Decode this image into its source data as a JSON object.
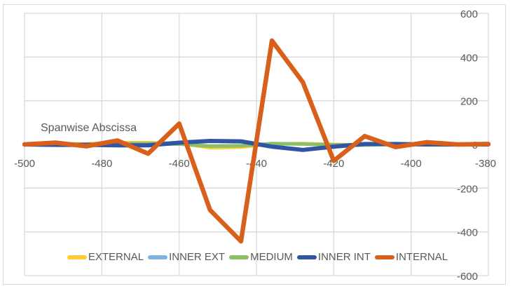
{
  "chart_data": {
    "type": "line",
    "title": "",
    "annotation": "Spanwise Abscissa",
    "xlabel": "",
    "ylabel": "",
    "xlim": [
      -500,
      -380
    ],
    "ylim": [
      -600,
      600
    ],
    "x_ticks": [
      -500,
      -480,
      -460,
      -440,
      -420,
      -400,
      -380
    ],
    "y_ticks": [
      600,
      400,
      200,
      0,
      -200,
      -400,
      -600
    ],
    "grid": true,
    "legend_position": "bottom",
    "x": [
      -500,
      -492,
      -484,
      -476,
      -468,
      -460,
      -452,
      -444,
      -436,
      -428,
      -420,
      -412,
      -404,
      -396,
      -388,
      -380
    ],
    "series": [
      {
        "name": "EXTERNAL",
        "color": "#FFC000",
        "values": [
          0,
          2,
          3,
          8,
          8,
          6,
          -15,
          -12,
          2,
          4,
          0,
          -2,
          0,
          1,
          0,
          0
        ]
      },
      {
        "name": "INNER EXT",
        "color": "#5B9BD5",
        "values": [
          0,
          1,
          2,
          5,
          5,
          4,
          -8,
          -6,
          3,
          2,
          0,
          -1,
          0,
          0,
          0,
          0
        ]
      },
      {
        "name": "MEDIUM",
        "color": "#70AD47",
        "values": [
          0,
          0,
          1,
          3,
          3,
          2,
          -8,
          -6,
          4,
          2,
          -2,
          -3,
          0,
          1,
          0,
          0
        ]
      },
      {
        "name": "INNER INT",
        "color": "#264478",
        "values": [
          0,
          -2,
          -2,
          -4,
          -4,
          8,
          16,
          14,
          -10,
          -25,
          -10,
          2,
          2,
          0,
          0,
          0
        ]
      },
      {
        "name": "INTERNAL",
        "color": "#D55E00",
        "values": [
          0,
          8,
          -8,
          18,
          -42,
          95,
          -300,
          -443,
          475,
          285,
          -75,
          38,
          -12,
          10,
          0,
          2
        ]
      }
    ]
  },
  "legend": {
    "items": [
      {
        "label": "EXTERNAL",
        "color": "#FFCC33"
      },
      {
        "label": "INNER EXT",
        "color": "#7FB2E0"
      },
      {
        "label": "MEDIUM",
        "color": "#8CC068"
      },
      {
        "label": "INNER INT",
        "color": "#2F55A4"
      },
      {
        "label": "INTERNAL",
        "color": "#D9601A"
      }
    ]
  },
  "axis_labels": {
    "x": [
      "-500",
      "-480",
      "-460",
      "-440",
      "-420",
      "-400",
      "-380"
    ],
    "y": [
      "600",
      "400",
      "200",
      "0",
      "-200",
      "-400",
      "-600"
    ]
  }
}
